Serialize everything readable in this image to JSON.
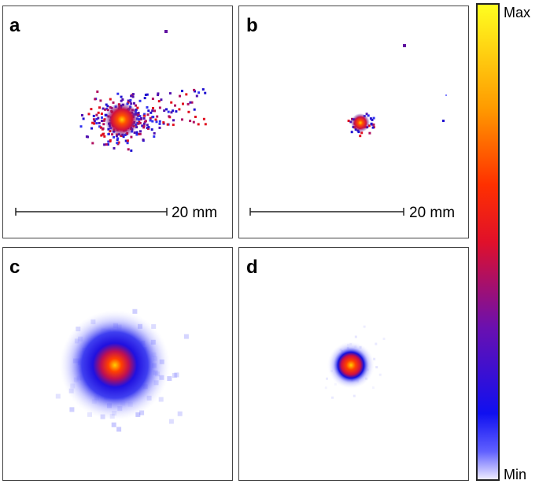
{
  "panels": [
    {
      "label": "a",
      "scale_bar": "20 mm"
    },
    {
      "label": "b",
      "scale_bar": "20 mm"
    },
    {
      "label": "c"
    },
    {
      "label": "d"
    }
  ],
  "colorbar": {
    "max_label": "Max",
    "min_label": "Min"
  }
}
